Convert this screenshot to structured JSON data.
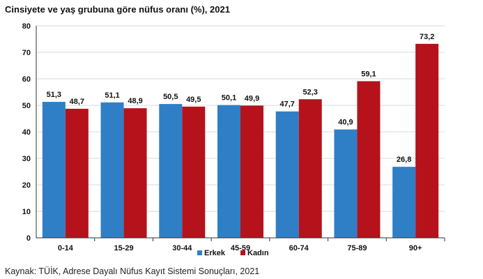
{
  "chart_data": {
    "type": "bar",
    "title": "Cinsiyete ve yaş grubuna göre nüfus oranı (%), 2021",
    "categories": [
      "0-14",
      "15-29",
      "30-44",
      "45-59",
      "60-74",
      "75-89",
      "90+"
    ],
    "series": [
      {
        "name": "Erkek",
        "values": [
          51.3,
          51.1,
          50.5,
          50.1,
          47.7,
          40.9,
          26.8
        ],
        "labels": [
          "51,3",
          "51,1",
          "50,5",
          "50,1",
          "47,7",
          "40,9",
          "26,8"
        ],
        "color": "#2e7fc6"
      },
      {
        "name": "Kadın",
        "values": [
          48.7,
          48.9,
          49.5,
          49.9,
          52.3,
          59.1,
          73.2
        ],
        "labels": [
          "48,7",
          "48,9",
          "49,5",
          "49,9",
          "52,3",
          "59,1",
          "73,2"
        ],
        "color": "#b5121b"
      }
    ],
    "ylim": [
      0,
      80
    ],
    "yticks": [
      "0",
      "10",
      "20",
      "30",
      "40",
      "50",
      "60",
      "70",
      "80"
    ],
    "grid": true,
    "legend": "bottom-center"
  },
  "source": "Kaynak: TÜİK, Adrese Dayalı Nüfus Kayıt Sistemi Sonuçları, 2021"
}
